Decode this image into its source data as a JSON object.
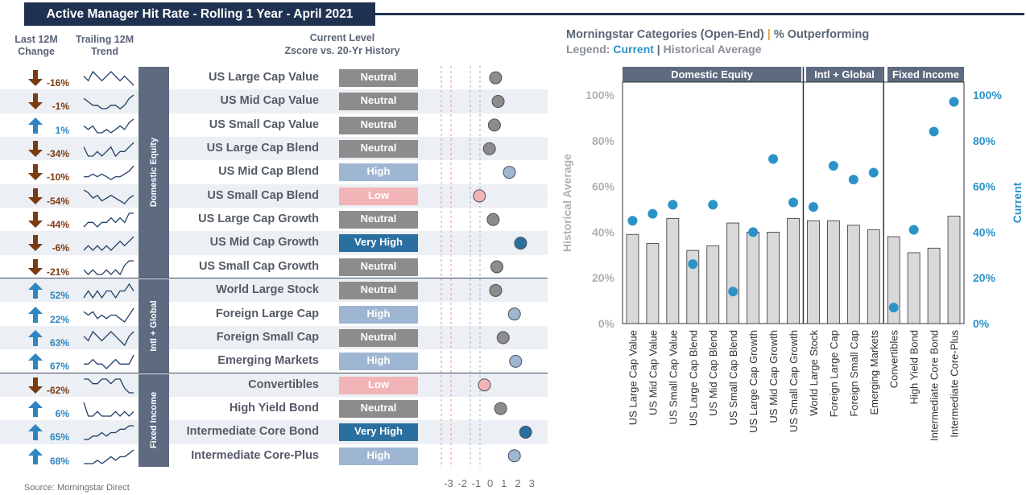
{
  "title": "Active Manager Hit Rate - Rolling 1 Year - April 2021",
  "left": {
    "header_change": "Last 12M Change",
    "header_trend": "Trailing 12M Trend",
    "header_current_1": "Current Level",
    "header_current_2": "Zscore vs. 20-Yr History",
    "zscore_ticks": [
      "-3",
      "-2",
      "-1",
      "0",
      "1",
      "2",
      "3"
    ],
    "groups": [
      {
        "name": "Domestic Equity",
        "start": 0,
        "count": 9
      },
      {
        "name": "Intl + Global",
        "start": 9,
        "count": 4
      },
      {
        "name": "Fixed Income",
        "start": 13,
        "count": 4
      }
    ],
    "rows": [
      {
        "name": "US Large Cap Value",
        "change": "-16%",
        "dir": "down",
        "level": "Neutral",
        "z": -0.1,
        "trend": [
          5,
          4,
          6,
          5,
          4,
          5,
          6,
          5,
          4,
          5,
          4,
          3
        ]
      },
      {
        "name": "US Mid Cap Value",
        "change": "-1%",
        "dir": "down",
        "level": "Neutral",
        "z": 0.1,
        "trend": [
          6,
          5,
          4,
          4,
          3,
          3,
          4,
          4,
          3,
          4,
          6,
          7
        ]
      },
      {
        "name": "US Small Cap Value",
        "change": "1%",
        "dir": "up",
        "level": "Neutral",
        "z": -0.2,
        "trend": [
          5,
          4,
          5,
          3,
          3,
          4,
          3,
          4,
          5,
          4,
          6,
          7
        ]
      },
      {
        "name": "US Large Cap Blend",
        "change": "-34%",
        "dir": "down",
        "level": "Neutral",
        "z": -0.6,
        "trend": [
          5,
          3,
          3,
          4,
          3,
          4,
          5,
          3,
          4,
          4,
          5,
          6
        ]
      },
      {
        "name": "US Mid Cap Blend",
        "change": "-10%",
        "dir": "down",
        "level": "High",
        "z": 1.0,
        "trend": [
          3,
          3,
          4,
          3,
          4,
          3,
          2,
          3,
          3,
          4,
          5,
          7
        ]
      },
      {
        "name": "US Small Cap Blend",
        "change": "-54%",
        "dir": "down",
        "level": "Low",
        "z": -1.4,
        "trend": [
          7,
          6,
          4,
          5,
          3,
          4,
          5,
          4,
          3,
          2,
          4,
          5
        ]
      },
      {
        "name": "US Large Cap Growth",
        "change": "-44%",
        "dir": "down",
        "level": "Neutral",
        "z": -0.3,
        "trend": [
          4,
          5,
          5,
          4,
          5,
          5,
          6,
          5,
          6,
          5,
          7,
          7
        ]
      },
      {
        "name": "US Mid Cap Growth",
        "change": "-6%",
        "dir": "down",
        "level": "Very High",
        "z": 1.9,
        "trend": [
          4,
          5,
          4,
          5,
          4,
          5,
          4,
          5,
          6,
          5,
          6,
          7
        ]
      },
      {
        "name": "US Small Cap Growth",
        "change": "-21%",
        "dir": "down",
        "level": "Neutral",
        "z": 0.0,
        "trend": [
          4,
          3,
          4,
          3,
          3,
          4,
          3,
          4,
          3,
          5,
          6,
          6
        ]
      },
      {
        "name": "World Large Stock",
        "change": "52%",
        "dir": "up",
        "level": "Neutral",
        "z": -0.1,
        "trend": [
          4,
          5,
          4,
          5,
          4,
          5,
          5,
          4,
          5,
          5,
          6,
          5
        ]
      },
      {
        "name": "Foreign Large Cap",
        "change": "22%",
        "dir": "up",
        "level": "High",
        "z": 1.4,
        "trend": [
          5,
          4,
          5,
          3,
          4,
          3,
          4,
          4,
          3,
          2,
          4,
          6
        ]
      },
      {
        "name": "Foreign Small Cap",
        "change": "63%",
        "dir": "up",
        "level": "Neutral",
        "z": 0.5,
        "trend": [
          5,
          4,
          6,
          5,
          4,
          5,
          6,
          5,
          4,
          3,
          5,
          6
        ]
      },
      {
        "name": "Emerging Markets",
        "change": "67%",
        "dir": "up",
        "level": "High",
        "z": 1.5,
        "trend": [
          4,
          4,
          5,
          4,
          4,
          3,
          4,
          5,
          4,
          4,
          4,
          6
        ]
      },
      {
        "name": "Convertibles",
        "change": "-62%",
        "dir": "down",
        "level": "Low",
        "z": -1.0,
        "trend": [
          6,
          6,
          5,
          5,
          6,
          6,
          5,
          6,
          6,
          4,
          3,
          3
        ]
      },
      {
        "name": "High Yield Bond",
        "change": "6%",
        "dir": "up",
        "level": "Neutral",
        "z": 0.3,
        "trend": [
          6,
          3,
          3,
          4,
          3,
          3,
          3,
          4,
          3,
          4,
          3,
          4
        ]
      },
      {
        "name": "Intermediate Core Bond",
        "change": "65%",
        "dir": "up",
        "level": "Very High",
        "z": 2.3,
        "trend": [
          2,
          2,
          3,
          3,
          4,
          3,
          4,
          4,
          5,
          5,
          6,
          6
        ]
      },
      {
        "name": "Intermediate Core-Plus",
        "change": "68%",
        "dir": "up",
        "level": "High",
        "z": 1.4,
        "trend": [
          3,
          3,
          3,
          4,
          3,
          4,
          5,
          4,
          5,
          5,
          6,
          7
        ]
      }
    ],
    "source": "Source: Morningstar Direct"
  },
  "level_colors": {
    "Neutral": "#8c8c8c",
    "High": "#9fb6d3",
    "Low": "#f2b5b7",
    "Very High": "#2a6f9f"
  },
  "dot_colors": {
    "Neutral": "#8c8c8c",
    "High": "#9fb6d3",
    "Low": "#f2b5b7",
    "Very High": "#2a6f9f"
  },
  "right": {
    "title_main": "Morningstar Categories (Open-End)",
    "title_sep": "|",
    "title_tail": "% Outperforming",
    "legend_prefix": "Legend: ",
    "legend_current": "Current",
    "legend_sep": "|",
    "legend_hist": "Historical Average",
    "sections": [
      "Domestic Equity",
      "Intl + Global",
      "Fixed Income"
    ]
  },
  "chart_data": {
    "type": "bar",
    "categories": [
      "US Large Cap Value",
      "US Mid Cap Value",
      "US Small Cap Value",
      "US Large Cap Blend",
      "US Mid Cap Blend",
      "US Small Cap Blend",
      "US Large Cap Growth",
      "US Mid Cap Growth",
      "US Small Cap Growth",
      "World Large Stock",
      "Foreign Large Cap",
      "Foreign Small Cap",
      "Emerging Markets",
      "Convertibles",
      "High Yield Bond",
      "Intermediate Core Bond",
      "Intermediate Core-Plus"
    ],
    "series": [
      {
        "name": "Historical Average",
        "type": "bar",
        "values": [
          39,
          35,
          46,
          32,
          34,
          44,
          40,
          40,
          46,
          45,
          45,
          43,
          41,
          38,
          31,
          33,
          47
        ]
      },
      {
        "name": "Current",
        "type": "scatter",
        "values": [
          45,
          48,
          52,
          26,
          52,
          14,
          40,
          72,
          53,
          51,
          69,
          63,
          66,
          7,
          41,
          84,
          97
        ]
      }
    ],
    "ylabel_left": "Historical Average",
    "ylabel_right": "Current",
    "yticks": [
      "0%",
      "20%",
      "40%",
      "60%",
      "80%",
      "100%"
    ],
    "ylim": [
      0,
      100
    ],
    "colors": {
      "bar": "#d9d9d9",
      "dot": "#2b93c8",
      "left_axis": "#b0b0b0",
      "right_axis": "#2b93c8"
    }
  }
}
